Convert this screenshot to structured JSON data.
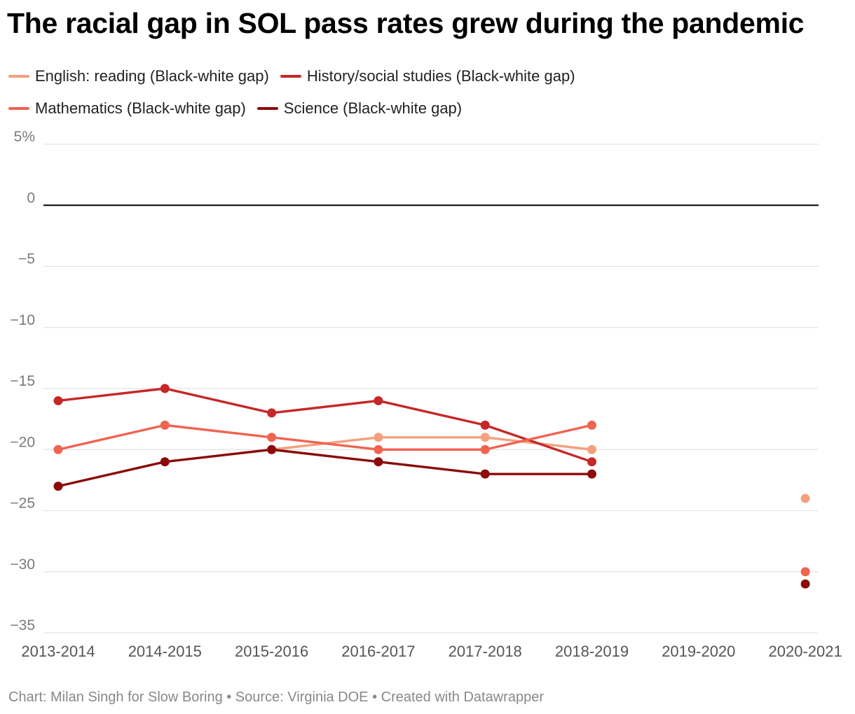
{
  "chart_data": {
    "type": "line",
    "title": "The racial gap in SOL pass rates grew during the pandemic",
    "categories": [
      "2013-2014",
      "2014-2015",
      "2015-2016",
      "2016-2017",
      "2017-2018",
      "2018-2019",
      "2019-2020",
      "2020-2021"
    ],
    "ylim": [
      -35,
      5
    ],
    "yticks": [
      5,
      0,
      -5,
      -10,
      -15,
      -20,
      -25,
      -30,
      -35
    ],
    "ytick_labels": [
      "5%",
      "0",
      "−5",
      "−10",
      "−15",
      "−20",
      "−25",
      "−30",
      "−35"
    ],
    "series": [
      {
        "name": "English: reading (Black-white gap)",
        "color": "#f4a07f",
        "values": [
          null,
          null,
          -20,
          -19,
          -19,
          -20,
          null,
          -24
        ]
      },
      {
        "name": "History/social studies (Black-white gap)",
        "color": "#c62828",
        "values": [
          -16,
          -15,
          -17,
          -16,
          -18,
          -21,
          null,
          null
        ]
      },
      {
        "name": "Mathematics (Black-white gap)",
        "color": "#ef6451",
        "values": [
          -20,
          -18,
          -19,
          -20,
          -20,
          -18,
          null,
          -30
        ]
      },
      {
        "name": "Science (Black-white gap)",
        "color": "#8b0a0a",
        "values": [
          -23,
          -21,
          -20,
          -21,
          -22,
          -22,
          null,
          -31
        ]
      }
    ],
    "footer": "Chart: Milan Singh for Slow Boring • Source: Virginia DOE • Created with Datawrapper"
  }
}
